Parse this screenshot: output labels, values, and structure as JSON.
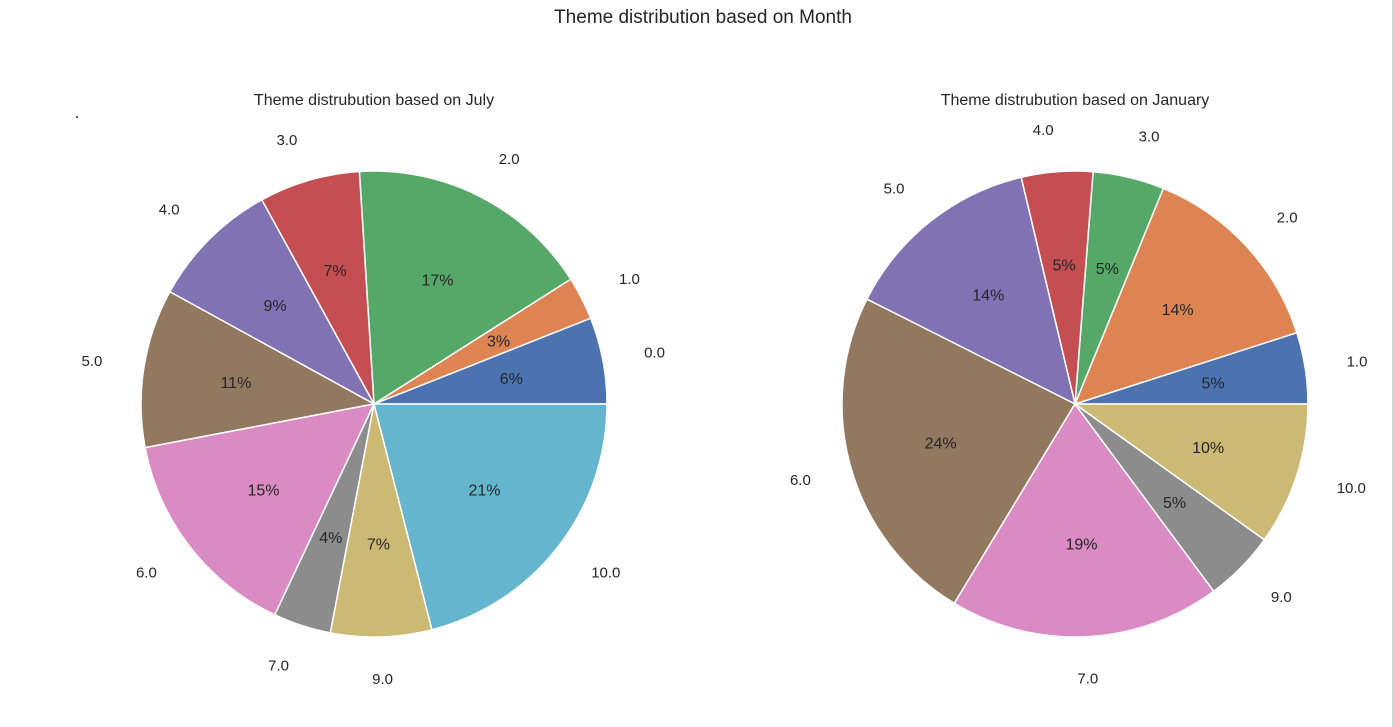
{
  "figure": {
    "title": "Theme distribution based on Month"
  },
  "chart_data": [
    {
      "type": "pie",
      "title": "Theme distrubution based on July",
      "categories": [
        "0.0",
        "1.0",
        "2.0",
        "3.0",
        "4.0",
        "5.0",
        "6.0",
        "7.0",
        "9.0",
        "10.0"
      ],
      "values": [
        6,
        3,
        17,
        7,
        9,
        11,
        15,
        4,
        7,
        21
      ],
      "labels_pct": [
        "6%",
        "3%",
        "17%",
        "7%",
        "9%",
        "11%",
        "15%",
        "4%",
        "7%",
        "21%"
      ],
      "colors": [
        "#4c72b0",
        "#dd8452",
        "#55a868",
        "#c44e52",
        "#8172b3",
        "#937860",
        "#da8bc3",
        "#8c8c8c",
        "#ccb974",
        "#64b5cd"
      ],
      "start_angle": 0,
      "direction": "counterclockwise"
    },
    {
      "type": "pie",
      "title": "Theme distrubution based on January",
      "categories": [
        "1.0",
        "2.0",
        "3.0",
        "4.0",
        "5.0",
        "6.0",
        "7.0",
        "9.0",
        "10.0"
      ],
      "values": [
        5,
        14,
        5,
        5,
        14,
        24,
        19,
        5,
        10
      ],
      "labels_pct": [
        "5%",
        "14%",
        "5%",
        "5%",
        "14%",
        "24%",
        "19%",
        "5%",
        "10%"
      ],
      "colors": [
        "#4c72b0",
        "#dd8452",
        "#55a868",
        "#c44e52",
        "#8172b3",
        "#937860",
        "#da8bc3",
        "#8c8c8c",
        "#ccb974"
      ],
      "start_angle": 0,
      "direction": "counterclockwise"
    }
  ]
}
